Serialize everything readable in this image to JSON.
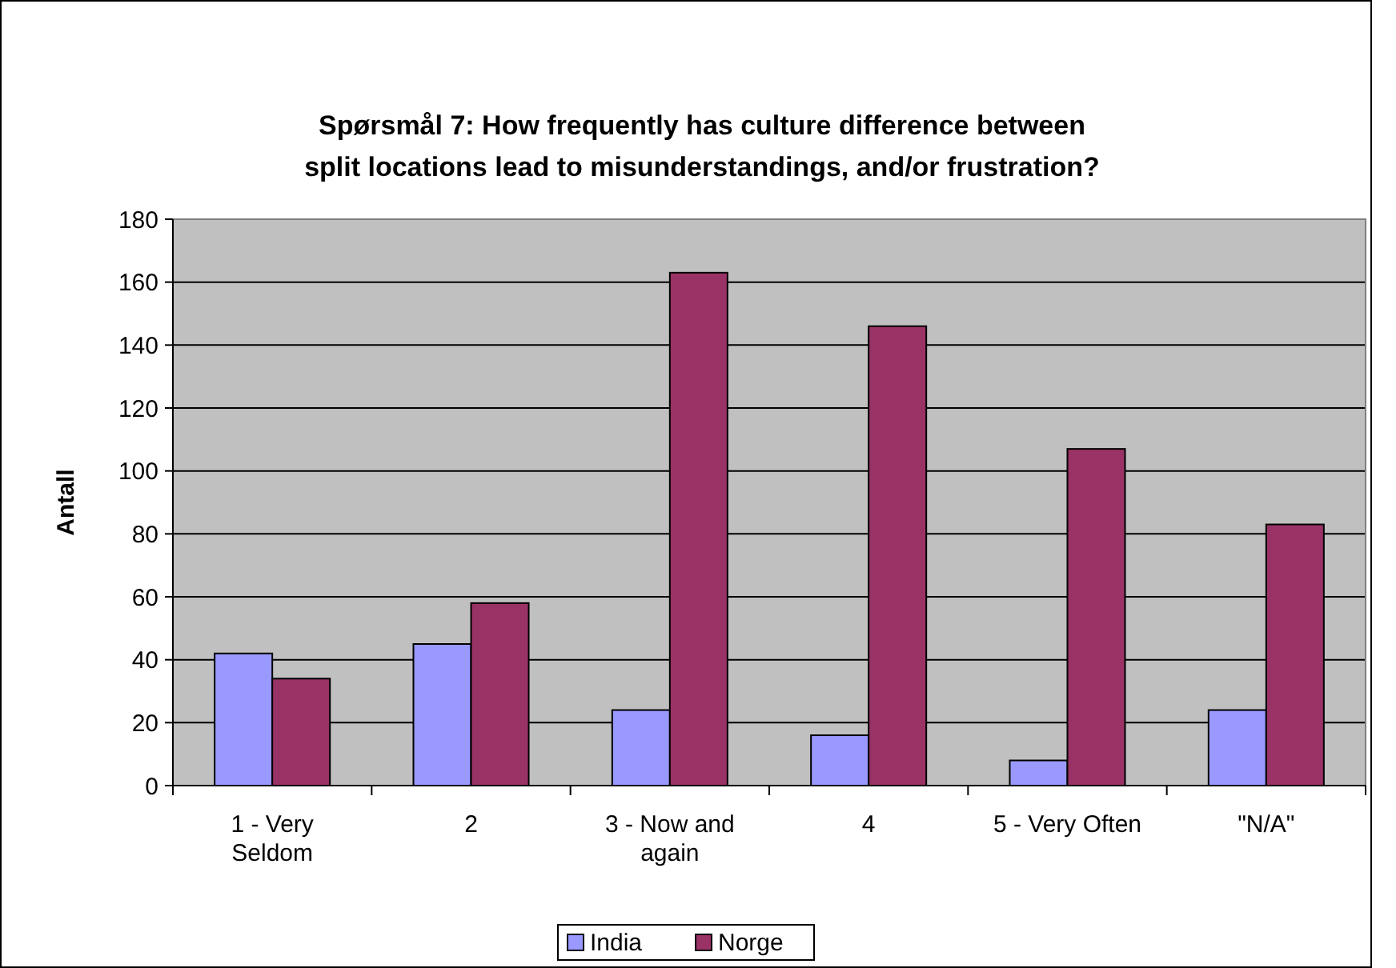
{
  "chart_data": {
    "type": "bar",
    "title": "Spørsmål 7: How frequently has culture difference between split locations lead to misunderstandings, and/or frustration?",
    "ylabel": "Antall",
    "categories": [
      "1 - Very Seldom",
      "2",
      "3 - Now and again",
      "4",
      "5 - Very Often",
      "\"N/A\""
    ],
    "series": [
      {
        "name": "India",
        "color": "#9999ff",
        "values": [
          42,
          45,
          24,
          16,
          8,
          24
        ]
      },
      {
        "name": "Norge",
        "color": "#993366",
        "values": [
          34,
          58,
          163,
          146,
          107,
          83
        ]
      }
    ],
    "ylim": [
      0,
      180
    ],
    "yticks": [
      0,
      20,
      40,
      60,
      80,
      100,
      120,
      140,
      160,
      180
    ],
    "grid": "y",
    "legend": "bottom"
  }
}
